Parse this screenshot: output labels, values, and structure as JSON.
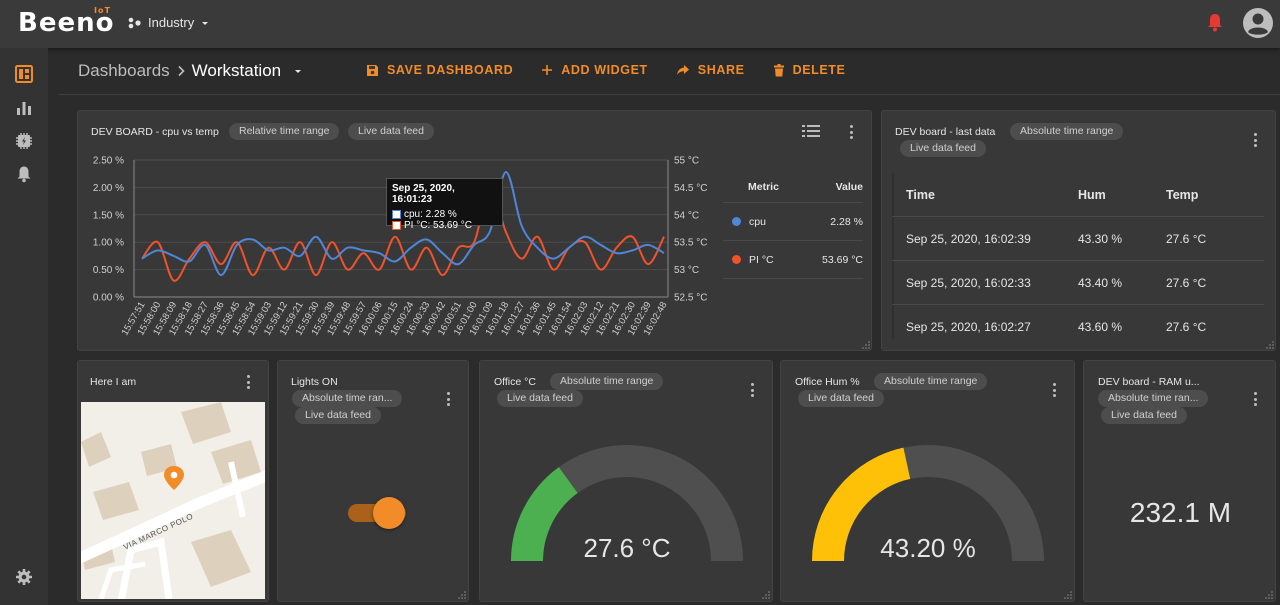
{
  "app": {
    "logo_text": "Beeno",
    "logo_badge": "IoT",
    "workspace": "Industry"
  },
  "breadcrumb": {
    "root": "Dashboards",
    "current": "Workstation"
  },
  "toolbar": {
    "save_label": "SAVE DASHBOARD",
    "add_widget_label": "ADD WIDGET",
    "share_label": "SHARE",
    "delete_label": "DELETE",
    "accent": "#f28c28"
  },
  "sidebar": {
    "items": [
      {
        "icon": "dashboard-icon",
        "active": true
      },
      {
        "icon": "bar-chart-icon",
        "active": false
      },
      {
        "icon": "device-icon",
        "active": false
      },
      {
        "icon": "bell-icon",
        "active": false
      }
    ],
    "bottom_icon": "settings-icon"
  },
  "widgets": {
    "chart": {
      "title": "DEV BOARD - cpu vs temp",
      "chips": [
        "Relative time range",
        "Live data feed"
      ],
      "tooltip": {
        "time": "Sep 25, 2020, 16:01:23",
        "cpu": "cpu: 2.28 %",
        "pi": "PI °C: 53.69 °C"
      },
      "legend": {
        "metric_header": "Metric",
        "value_header": "Value",
        "rows": [
          {
            "name": "cpu",
            "value": "2.28 %",
            "color": "#4f86d8"
          },
          {
            "name": "PI °C",
            "value": "53.69 °C",
            "color": "#f0522a"
          }
        ]
      }
    },
    "last_data": {
      "title": "DEV board - last data",
      "chips": [
        "Absolute time range",
        "Live data feed"
      ],
      "headers": [
        "Time",
        "Hum",
        "Temp"
      ],
      "rows": [
        [
          "Sep 25, 2020, 16:02:39",
          "43.30 %",
          "27.6 °C"
        ],
        [
          "Sep 25, 2020, 16:02:33",
          "43.40 %",
          "27.6 °C"
        ],
        [
          "Sep 25, 2020, 16:02:27",
          "43.60 %",
          "27.6 °C"
        ]
      ]
    },
    "map": {
      "title": "Here I am",
      "street": "VIA MARCO POLO"
    },
    "lights": {
      "title": "Lights ON",
      "chips": [
        "Absolute time ran...",
        "Live data feed"
      ],
      "state": true
    },
    "office_temp": {
      "title": "Office °C",
      "chips": [
        "Absolute time range",
        "Live data feed"
      ],
      "value_text": "27.6 °C",
      "fraction": 0.3,
      "color": "#4caf50"
    },
    "office_hum": {
      "title": "Office Hum %",
      "chips": [
        "Absolute time range",
        "Live data feed"
      ],
      "value_text": "43.20 %",
      "fraction": 0.432,
      "color": "#ffc107"
    },
    "ram": {
      "title": "DEV board - RAM u...",
      "chips": [
        "Absolute time ran...",
        "Live data feed"
      ],
      "value_text": "232.1 M"
    }
  },
  "chart_data": {
    "type": "line",
    "title": "DEV BOARD - cpu vs temp",
    "xlabel": "",
    "ylabel_left": "",
    "ylabel_right": "",
    "x": [
      "15:57:51",
      "15:58:00",
      "15:58:09",
      "15:58:18",
      "15:58:27",
      "15:58:36",
      "15:58:45",
      "15:58:54",
      "15:59:03",
      "15:59:12",
      "15:59:21",
      "15:59:30",
      "15:59:39",
      "15:59:48",
      "15:59:57",
      "16:00:06",
      "16:00:15",
      "16:00:24",
      "16:00:33",
      "16:00:42",
      "16:00:51",
      "16:01:00",
      "16:01:09",
      "16:01:18",
      "16:01:27",
      "16:01:36",
      "16:01:45",
      "16:01:54",
      "16:02:03",
      "16:02:12",
      "16:02:21",
      "16:02:30",
      "16:02:39",
      "16:02:48"
    ],
    "left_ticks": [
      "2.50 %",
      "2.00 %",
      "1.50 %",
      "1.00 %",
      "0.50 %",
      "0.00 %"
    ],
    "right_ticks": [
      "55 °C",
      "54.5 °C",
      "54 °C",
      "53.5 °C",
      "53 °C",
      "52.5 °C"
    ],
    "ylim_left": [
      0,
      2.5
    ],
    "ylim_right": [
      52.5,
      55
    ],
    "grid": true,
    "series": [
      {
        "name": "cpu",
        "axis": "left",
        "color": "#4f86d8",
        "values": [
          0.7,
          0.85,
          0.75,
          0.65,
          0.95,
          0.4,
          0.95,
          1.05,
          0.85,
          0.9,
          0.75,
          1.1,
          0.7,
          0.9,
          0.85,
          0.8,
          0.65,
          0.9,
          1.05,
          0.8,
          0.6,
          0.95,
          1.2,
          2.28,
          1.3,
          0.9,
          0.7,
          0.9,
          1.1,
          0.95,
          0.8,
          0.85,
          0.95,
          0.8
        ]
      },
      {
        "name": "PI °C",
        "axis": "right",
        "color": "#f0522a",
        "values": [
          53.2,
          53.5,
          52.8,
          53.2,
          53.5,
          53.1,
          53.5,
          52.9,
          53.4,
          53.0,
          53.5,
          52.9,
          53.5,
          53.0,
          53.3,
          53.0,
          53.6,
          53.0,
          53.4,
          52.9,
          53.4,
          53.5,
          54.5,
          53.69,
          53.2,
          53.6,
          53.0,
          53.4,
          53.5,
          53.0,
          53.4,
          53.6,
          53.1,
          53.6
        ]
      }
    ]
  }
}
